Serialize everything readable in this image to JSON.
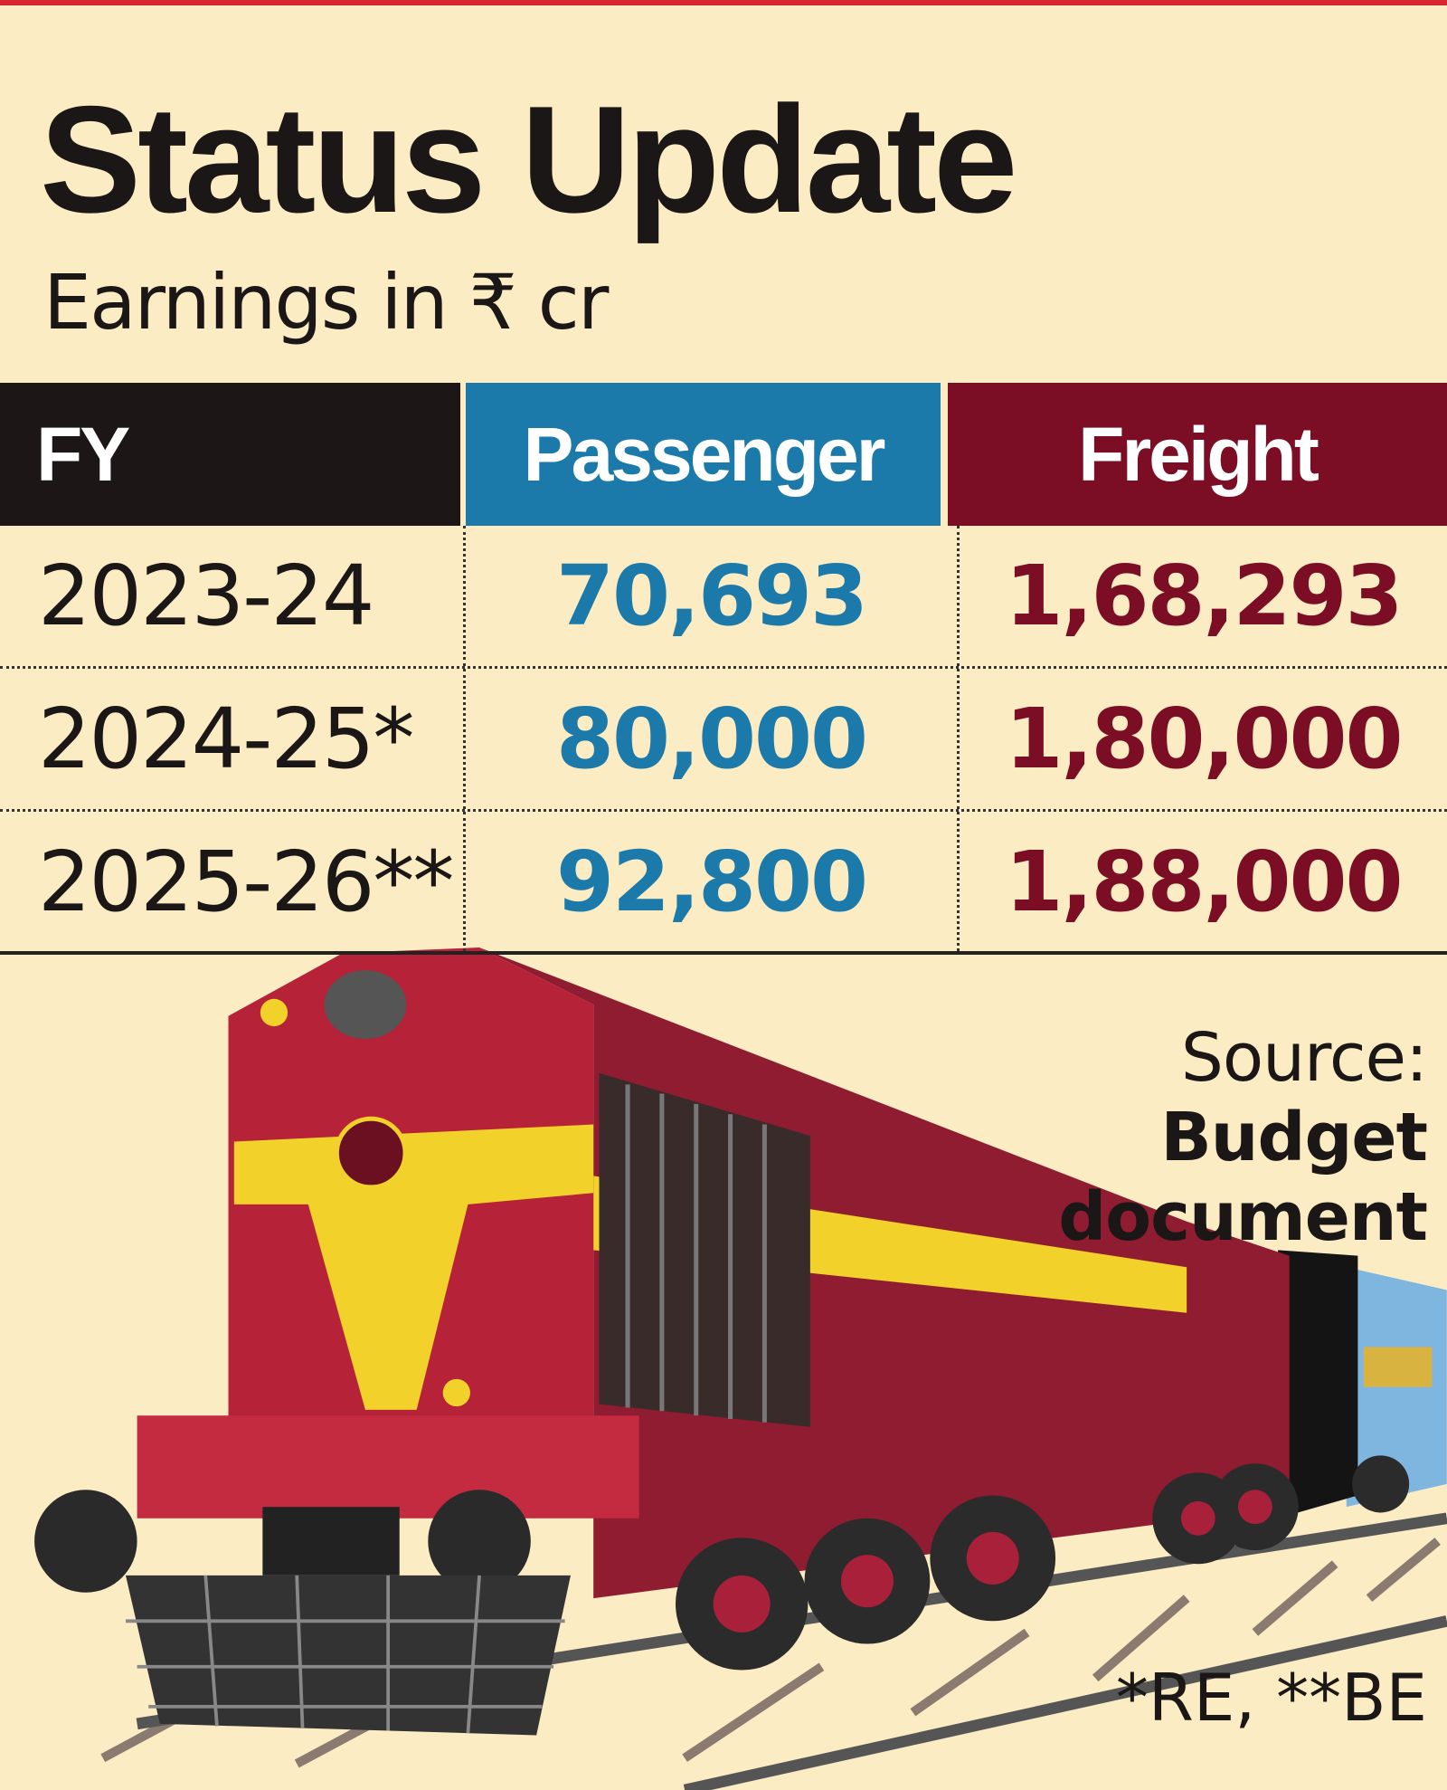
{
  "header": {
    "title": "Status Update",
    "subtitle": "Earnings in ₹ cr"
  },
  "table": {
    "columns": [
      "FY",
      "Passenger",
      "Freight"
    ],
    "rows": [
      [
        "2023-24",
        "70,693",
        "1,68,293"
      ],
      [
        "2024-25*",
        "80,000",
        "1,80,000"
      ],
      [
        "2025-26**",
        "92,800",
        "1,88,000"
      ]
    ]
  },
  "source": {
    "label": "Source:",
    "text": "Budget document"
  },
  "footnote": "*RE, **BE"
}
